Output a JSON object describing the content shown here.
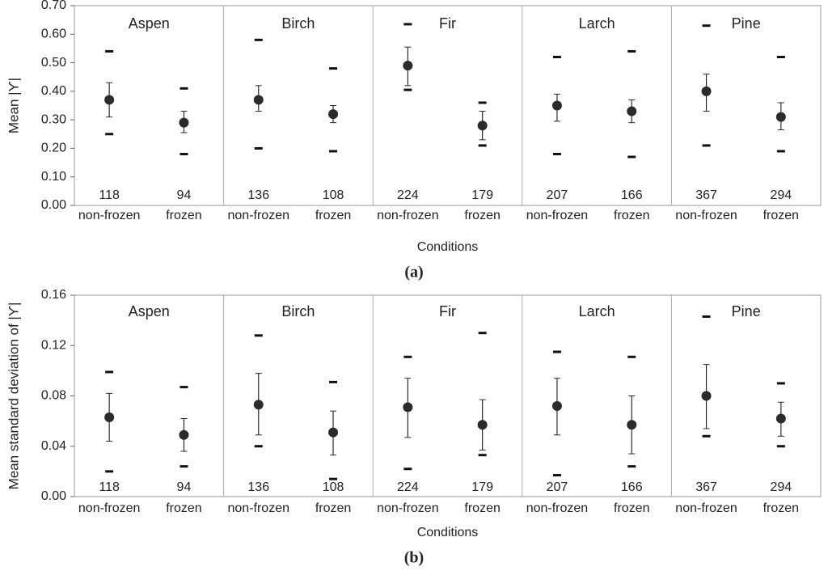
{
  "chart_data": [
    {
      "type": "range-dot",
      "caption": "(a)",
      "ylabel": "Mean |ϒ|",
      "xlabel": "Conditions",
      "color": "#2b2b2b",
      "ylim": [
        0,
        0.7
      ],
      "yticks": [
        {
          "value": 0,
          "label": "0.00"
        },
        {
          "value": 0.1,
          "label": "0.10"
        },
        {
          "value": 0.2,
          "label": "0.20"
        },
        {
          "value": 0.3,
          "label": "0.30"
        },
        {
          "value": 0.4,
          "label": "0.40"
        },
        {
          "value": 0.5,
          "label": "0.50"
        },
        {
          "value": 0.6,
          "label": "0.60"
        },
        {
          "value": 0.7,
          "label": "0.70"
        }
      ],
      "groups": [
        "Aspen",
        "Birch",
        "Fir",
        "Larch",
        "Pine"
      ],
      "categories": [
        "non-frozen",
        "frozen",
        "non-frozen",
        "frozen",
        "non-frozen",
        "frozen",
        "non-frozen",
        "frozen",
        "non-frozen",
        "frozen"
      ],
      "n": [
        118,
        94,
        136,
        108,
        224,
        179,
        207,
        166,
        367,
        294
      ],
      "values": [
        0.37,
        0.29,
        0.37,
        0.32,
        0.49,
        0.28,
        0.35,
        0.33,
        0.4,
        0.31
      ],
      "lower": [
        0.31,
        0.255,
        0.33,
        0.29,
        0.42,
        0.23,
        0.295,
        0.29,
        0.33,
        0.265
      ],
      "upper": [
        0.43,
        0.33,
        0.42,
        0.35,
        0.555,
        0.33,
        0.39,
        0.37,
        0.46,
        0.36
      ],
      "min": [
        0.25,
        0.18,
        0.2,
        0.19,
        0.405,
        0.21,
        0.18,
        0.17,
        0.21,
        0.19
      ],
      "max": [
        0.54,
        0.41,
        0.58,
        0.48,
        0.635,
        0.36,
        0.52,
        0.54,
        0.63,
        0.52
      ]
    },
    {
      "type": "range-dot",
      "caption": "(b)",
      "ylabel": "Mean standard deviation of |ϒ|",
      "xlabel": "Conditions",
      "color": "#2b2b2b",
      "ylim": [
        0,
        0.16
      ],
      "yticks": [
        {
          "value": 0,
          "label": "0.00"
        },
        {
          "value": 0.04,
          "label": "0.04"
        },
        {
          "value": 0.08,
          "label": "0.08"
        },
        {
          "value": 0.12,
          "label": "0.12"
        },
        {
          "value": 0.16,
          "label": "0.16"
        }
      ],
      "groups": [
        "Aspen",
        "Birch",
        "Fir",
        "Larch",
        "Pine"
      ],
      "categories": [
        "non-frozen",
        "frozen",
        "non-frozen",
        "frozen",
        "non-frozen",
        "frozen",
        "non-frozen",
        "frozen",
        "non-frozen",
        "frozen"
      ],
      "n": [
        118,
        94,
        136,
        108,
        224,
        179,
        207,
        166,
        367,
        294
      ],
      "values": [
        0.063,
        0.049,
        0.073,
        0.051,
        0.071,
        0.057,
        0.072,
        0.057,
        0.08,
        0.062
      ],
      "lower": [
        0.044,
        0.036,
        0.049,
        0.033,
        0.047,
        0.037,
        0.049,
        0.034,
        0.054,
        0.048
      ],
      "upper": [
        0.082,
        0.062,
        0.098,
        0.068,
        0.094,
        0.077,
        0.094,
        0.08,
        0.105,
        0.075
      ],
      "min": [
        0.02,
        0.024,
        0.04,
        0.014,
        0.022,
        0.033,
        0.017,
        0.024,
        0.048,
        0.04
      ],
      "max": [
        0.099,
        0.087,
        0.128,
        0.091,
        0.111,
        0.13,
        0.115,
        0.111,
        0.143,
        0.09
      ]
    }
  ]
}
